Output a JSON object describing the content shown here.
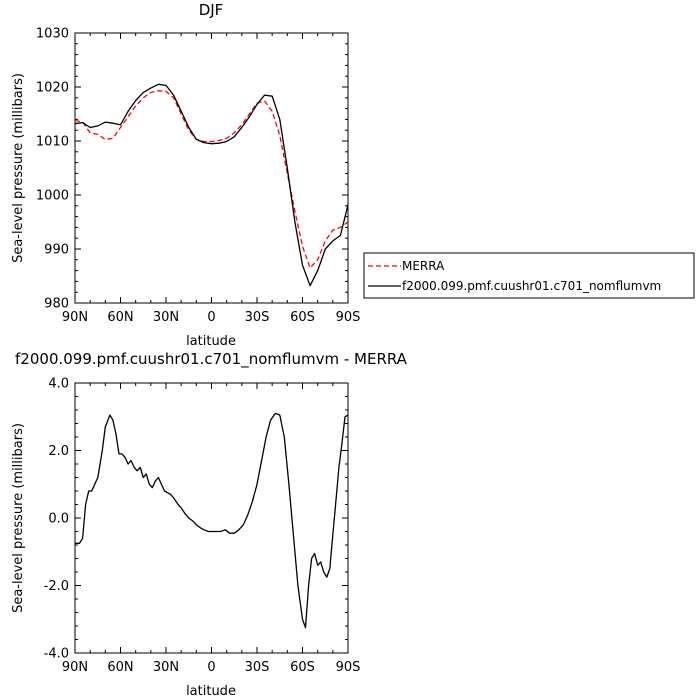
{
  "chart_data": [
    {
      "type": "line",
      "title": "DJF",
      "xlabel": "latitude",
      "ylabel": "Sea-level pressure (millibars)",
      "xlim": [
        90,
        -90
      ],
      "ylim": [
        980,
        1030
      ],
      "x_ticks": [
        {
          "value": 90,
          "label": "90N"
        },
        {
          "value": 60,
          "label": "60N"
        },
        {
          "value": 30,
          "label": "30N"
        },
        {
          "value": 0,
          "label": "0"
        },
        {
          "value": -30,
          "label": "30S"
        },
        {
          "value": -60,
          "label": "60S"
        },
        {
          "value": -90,
          "label": "90S"
        }
      ],
      "y_ticks": [
        {
          "value": 980,
          "label": "980"
        },
        {
          "value": 990,
          "label": "990"
        },
        {
          "value": 1000,
          "label": "1000"
        },
        {
          "value": 1010,
          "label": "1010"
        },
        {
          "value": 1020,
          "label": "1020"
        },
        {
          "value": 1030,
          "label": "1030"
        }
      ],
      "legend": "right",
      "series": [
        {
          "name": "MERRA",
          "color": "#ff0000",
          "dash": true,
          "x": [
            90,
            85,
            80,
            75,
            70,
            65,
            60,
            55,
            50,
            45,
            40,
            35,
            30,
            25,
            20,
            15,
            10,
            5,
            0,
            -5,
            -10,
            -15,
            -20,
            -25,
            -30,
            -35,
            -40,
            -45,
            -50,
            -55,
            -60,
            -65,
            -70,
            -75,
            -80,
            -85,
            -90
          ],
          "y": [
            1013.8,
            1013.5,
            1011.5,
            1011.2,
            1010.3,
            1010.5,
            1012.5,
            1014.5,
            1016.5,
            1018.0,
            1019.0,
            1019.3,
            1019.2,
            1018.0,
            1015.0,
            1012.0,
            1010.3,
            1009.9,
            1009.9,
            1010.1,
            1010.5,
            1011.5,
            1013.0,
            1015.0,
            1017.0,
            1017.4,
            1015.5,
            1011.0,
            1004.0,
            997.0,
            990.5,
            986.5,
            988.0,
            991.5,
            993.5,
            994.0,
            995.0
          ]
        },
        {
          "name": "f2000.099.pmf.cuushr01.c701_nomflumvm",
          "color": "#000000",
          "dash": false,
          "x": [
            90,
            85,
            80,
            75,
            70,
            65,
            60,
            55,
            50,
            45,
            40,
            35,
            30,
            25,
            20,
            15,
            10,
            5,
            0,
            -5,
            -10,
            -15,
            -20,
            -25,
            -30,
            -35,
            -40,
            -45,
            -50,
            -55,
            -60,
            -65,
            -70,
            -75,
            -80,
            -85,
            -90
          ],
          "y": [
            1013.2,
            1013.4,
            1012.5,
            1012.8,
            1013.5,
            1013.3,
            1013.0,
            1015.5,
            1017.5,
            1019.0,
            1019.8,
            1020.5,
            1020.3,
            1018.5,
            1015.5,
            1012.5,
            1010.3,
            1009.7,
            1009.5,
            1009.6,
            1009.9,
            1010.8,
            1012.5,
            1014.5,
            1016.8,
            1018.5,
            1018.3,
            1014.0,
            1005.0,
            995.0,
            987.0,
            983.2,
            986.0,
            990.0,
            991.5,
            992.5,
            998.2
          ]
        }
      ]
    },
    {
      "type": "line",
      "title": "f2000.099.pmf.cuushr01.c701_nomflumvm  -  MERRA",
      "xlabel": "latitude",
      "ylabel": "Sea-level pressure (millibars)",
      "xlim": [
        90,
        -90
      ],
      "ylim": [
        -4.0,
        4.0
      ],
      "x_ticks": [
        {
          "value": 90,
          "label": "90N"
        },
        {
          "value": 60,
          "label": "60N"
        },
        {
          "value": 30,
          "label": "30N"
        },
        {
          "value": 0,
          "label": "0"
        },
        {
          "value": -30,
          "label": "30S"
        },
        {
          "value": -60,
          "label": "60S"
        },
        {
          "value": -90,
          "label": "90S"
        }
      ],
      "y_ticks": [
        {
          "value": -4.0,
          "label": "-4.0"
        },
        {
          "value": -2.0,
          "label": "-2.0"
        },
        {
          "value": 0.0,
          "label": "0.0"
        },
        {
          "value": 2.0,
          "label": "2.0"
        },
        {
          "value": 4.0,
          "label": "4.0"
        }
      ],
      "series": [
        {
          "color": "#000000",
          "dash": false,
          "x": [
            90,
            87,
            85,
            83,
            81,
            79,
            77,
            75,
            72,
            70,
            67,
            65,
            63,
            61,
            59,
            57,
            55,
            53,
            51,
            49,
            47,
            45,
            43,
            41,
            39,
            37,
            35,
            33,
            31,
            29,
            27,
            25,
            22,
            20,
            17,
            15,
            12,
            10,
            7,
            5,
            2,
            0,
            -3,
            -6,
            -9,
            -12,
            -15,
            -18,
            -21,
            -24,
            -27,
            -30,
            -33,
            -36,
            -39,
            -42,
            -45,
            -48,
            -51,
            -54,
            -57,
            -60,
            -62,
            -64,
            -66,
            -68,
            -70,
            -72,
            -74,
            -76,
            -78,
            -80,
            -82,
            -84,
            -86,
            -88,
            -90
          ],
          "y": [
            -0.75,
            -0.75,
            -0.6,
            0.4,
            0.8,
            0.8,
            1.0,
            1.2,
            2.0,
            2.7,
            3.05,
            2.9,
            2.5,
            1.9,
            1.9,
            1.8,
            1.6,
            1.7,
            1.5,
            1.4,
            1.5,
            1.2,
            1.3,
            1.0,
            0.9,
            1.1,
            1.2,
            1.0,
            0.8,
            0.75,
            0.7,
            0.6,
            0.4,
            0.3,
            0.1,
            0.0,
            -0.1,
            -0.2,
            -0.3,
            -0.35,
            -0.4,
            -0.4,
            -0.4,
            -0.4,
            -0.35,
            -0.45,
            -0.45,
            -0.35,
            -0.2,
            0.1,
            0.5,
            1.0,
            1.7,
            2.4,
            2.9,
            3.1,
            3.05,
            2.4,
            1.0,
            -0.5,
            -2.0,
            -3.0,
            -3.25,
            -2.0,
            -1.2,
            -1.05,
            -1.4,
            -1.3,
            -1.6,
            -1.75,
            -1.5,
            -0.5,
            0.5,
            1.5,
            2.2,
            3.0,
            3.05
          ]
        }
      ]
    }
  ]
}
